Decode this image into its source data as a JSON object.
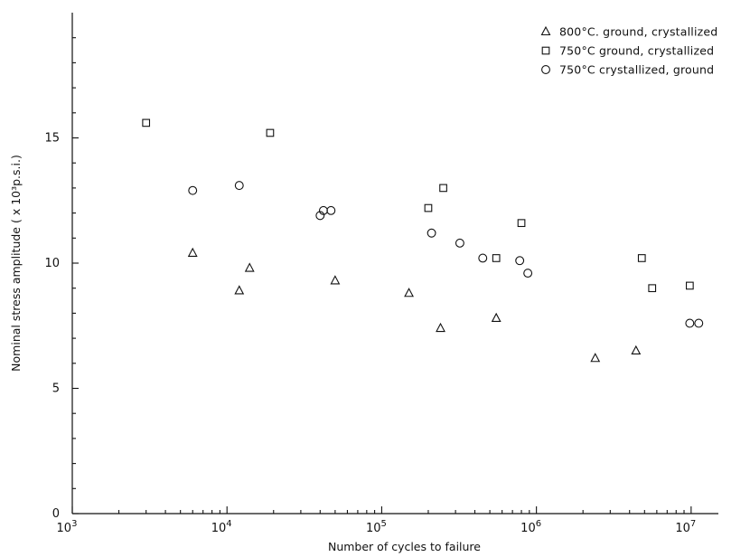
{
  "chart_data": {
    "type": "scatter",
    "xscale": "log",
    "xlim": [
      1000,
      15000000
    ],
    "ylim": [
      0,
      20
    ],
    "xlabel": "Number of cycles to failure",
    "ylabel": "Nominal stress amplitude ( x 10³p.s.i.)",
    "grid": false,
    "legend_position": "top-right",
    "x_ticks": [
      {
        "value": 1000,
        "base": "10",
        "exp": "3"
      },
      {
        "value": 10000,
        "base": "10",
        "exp": "4"
      },
      {
        "value": 100000,
        "base": "10",
        "exp": "5"
      },
      {
        "value": 1000000,
        "base": "10",
        "exp": "6"
      },
      {
        "value": 10000000,
        "base": "10",
        "exp": "7"
      }
    ],
    "y_ticks": [
      {
        "value": 0,
        "label": "0"
      },
      {
        "value": 5,
        "label": "5"
      },
      {
        "value": 10,
        "label": "10"
      },
      {
        "value": 15,
        "label": "15"
      }
    ],
    "series": [
      {
        "name": "800°C. ground, crystallized",
        "marker": "triangle",
        "points": [
          [
            6000,
            10.4
          ],
          [
            12000,
            8.9
          ],
          [
            14000,
            9.8
          ],
          [
            50000,
            9.3
          ],
          [
            150000,
            8.8
          ],
          [
            240000,
            7.4
          ],
          [
            550000,
            7.8
          ],
          [
            2400000,
            6.2
          ],
          [
            4400000,
            6.5
          ]
        ]
      },
      {
        "name": "750°C ground, crystallized",
        "marker": "square",
        "points": [
          [
            3000,
            15.6
          ],
          [
            19000,
            15.2
          ],
          [
            200000,
            12.2
          ],
          [
            250000,
            13.0
          ],
          [
            550000,
            10.2
          ],
          [
            800000,
            11.6
          ],
          [
            4800000,
            10.2
          ],
          [
            5600000,
            9.0
          ],
          [
            9800000,
            9.1
          ]
        ]
      },
      {
        "name": "750°C crystallized, ground",
        "marker": "circle",
        "points": [
          [
            6000,
            12.9
          ],
          [
            12000,
            13.1
          ],
          [
            40000,
            11.9
          ],
          [
            42000,
            12.1
          ],
          [
            47000,
            12.1
          ],
          [
            210000,
            11.2
          ],
          [
            320000,
            10.8
          ],
          [
            450000,
            10.2
          ],
          [
            780000,
            10.1
          ],
          [
            880000,
            9.6
          ],
          [
            9800000,
            7.6
          ],
          [
            11200000,
            7.6
          ]
        ]
      }
    ]
  }
}
